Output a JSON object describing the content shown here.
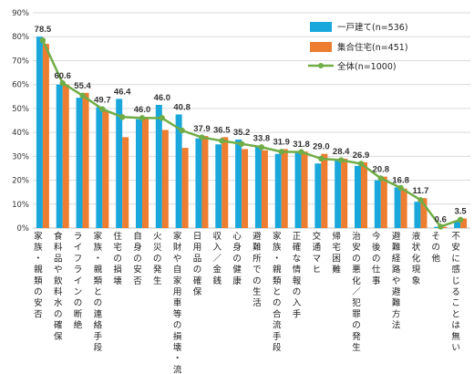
{
  "chart_data": {
    "type": "bar",
    "categories": [
      "家族・親類の安否",
      "食料品や飲料水の確保",
      "ライフラインの断絶",
      "家族・親類との連絡手段",
      "住宅の損壊",
      "自身の安否",
      "火災の発生",
      "家財や自家用車等の損壊・流失",
      "日用品の確保",
      "収入／金銭",
      "心身の健康",
      "避難所での生活",
      "家族・親類との合流手段",
      "正確な情報の入手",
      "交通マヒ",
      "帰宅困難",
      "治安の悪化／犯罪の発生",
      "今後の仕事",
      "避難経路や避難方法",
      "液状化現象",
      "その他",
      "不安に感じることは無い"
    ],
    "series": [
      {
        "name": "一戸建て(n=536)",
        "type": "bar",
        "color": "#1aa8dc",
        "values": [
          80.0,
          60.0,
          54.5,
          50.5,
          54.0,
          45.5,
          51.5,
          47.5,
          37.5,
          35.0,
          37.0,
          34.5,
          31.0,
          32.0,
          27.0,
          28.5,
          26.0,
          20.0,
          17.0,
          11.0,
          0.5,
          3.0
        ]
      },
      {
        "name": "集合住宅(n=451)",
        "type": "bar",
        "color": "#ed7d31",
        "values": [
          77.0,
          60.0,
          56.5,
          49.0,
          38.0,
          46.5,
          41.0,
          33.5,
          38.5,
          38.0,
          33.0,
          32.5,
          33.0,
          32.0,
          31.0,
          29.0,
          27.5,
          21.5,
          16.5,
          12.5,
          0.5,
          4.0
        ]
      },
      {
        "name": "全体(n=1000)",
        "type": "line",
        "color": "#70ad47",
        "values": [
          78.5,
          60.6,
          55.4,
          49.7,
          46.4,
          46.0,
          46.0,
          40.8,
          37.9,
          36.5,
          35.2,
          33.8,
          31.9,
          31.8,
          29.0,
          28.4,
          26.9,
          20.8,
          16.8,
          11.7,
          0.6,
          3.5
        ]
      }
    ],
    "data_labels": [
      "78.5",
      "60.6",
      "55.4",
      "49.7",
      "46.4",
      "46.0",
      "46.0",
      "40.8",
      "37.9",
      "36.5",
      "35.2",
      "33.8",
      "31.9",
      "31.8",
      "29.0",
      "28.4",
      "26.9",
      "20.8",
      "16.8",
      "11.7",
      "0.6",
      "3.5"
    ],
    "y_ticks": [
      "0%",
      "10%",
      "20%",
      "30%",
      "40%",
      "50%",
      "60%",
      "70%",
      "80%",
      "90%"
    ],
    "ylim": [
      0,
      90
    ],
    "grid": true,
    "legend_position": "top-right",
    "title": "",
    "xlabel": "",
    "ylabel": ""
  }
}
